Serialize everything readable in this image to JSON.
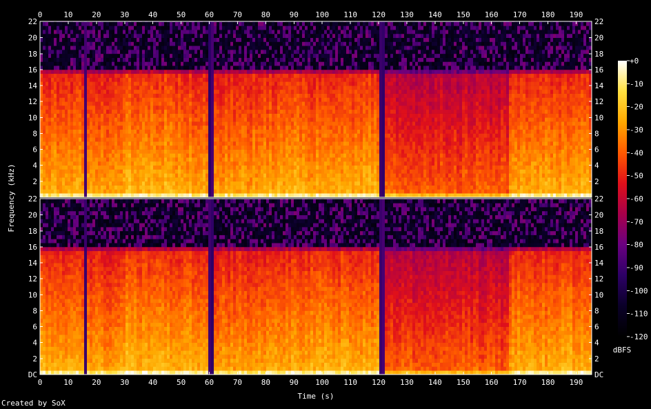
{
  "chart_data": {
    "type": "heatmap",
    "title": "",
    "xlabel": "Time (s)",
    "ylabel": "Frequency (kHz)",
    "xlim": [
      0,
      195.5
    ],
    "ylim": [
      0,
      22.05
    ],
    "x_ticks": [
      "0",
      "10",
      "20",
      "30",
      "40",
      "50",
      "60",
      "70",
      "80",
      "90",
      "100",
      "110",
      "120",
      "130",
      "140",
      "150",
      "160",
      "170",
      "180",
      "190"
    ],
    "y_ticks": [
      "DC",
      "2",
      "4",
      "6",
      "8",
      "10",
      "12",
      "14",
      "16",
      "18",
      "20",
      "22"
    ],
    "channels": [
      {
        "name": "",
        "cutoff_khz": 16
      },
      {
        "name": "",
        "cutoff_khz": 16
      }
    ],
    "silent_gaps_s": [
      16.2,
      60.5,
      121.0
    ],
    "sections": [
      {
        "start": 0,
        "end": 16,
        "level": 0.8
      },
      {
        "start": 17,
        "end": 30,
        "level": 0.78
      },
      {
        "start": 30,
        "end": 46,
        "level": 0.82
      },
      {
        "start": 46,
        "end": 60,
        "level": 0.8
      },
      {
        "start": 61,
        "end": 76,
        "level": 0.78
      },
      {
        "start": 76,
        "end": 121,
        "level": 0.8
      },
      {
        "start": 122,
        "end": 166,
        "level": 0.68
      },
      {
        "start": 166,
        "end": 195.5,
        "level": 0.8
      }
    ],
    "colorbar": {
      "label": "dBFS",
      "min": -120,
      "max": 0,
      "ticks": [
        "+0",
        "-10",
        "-20",
        "-30",
        "-40",
        "-50",
        "-60",
        "-70",
        "-80",
        "-90",
        "-100",
        "-110",
        "-120"
      ]
    },
    "colors": {
      "stops": [
        "#000000",
        "#0a0028",
        "#2d0066",
        "#6a0080",
        "#a8004a",
        "#e0101a",
        "#ff5a00",
        "#ffa800",
        "#ffe040",
        "#ffffff"
      ],
      "background": "#000000",
      "text": "#ffffff"
    }
  },
  "footer": {
    "credit": "Created by SoX"
  }
}
